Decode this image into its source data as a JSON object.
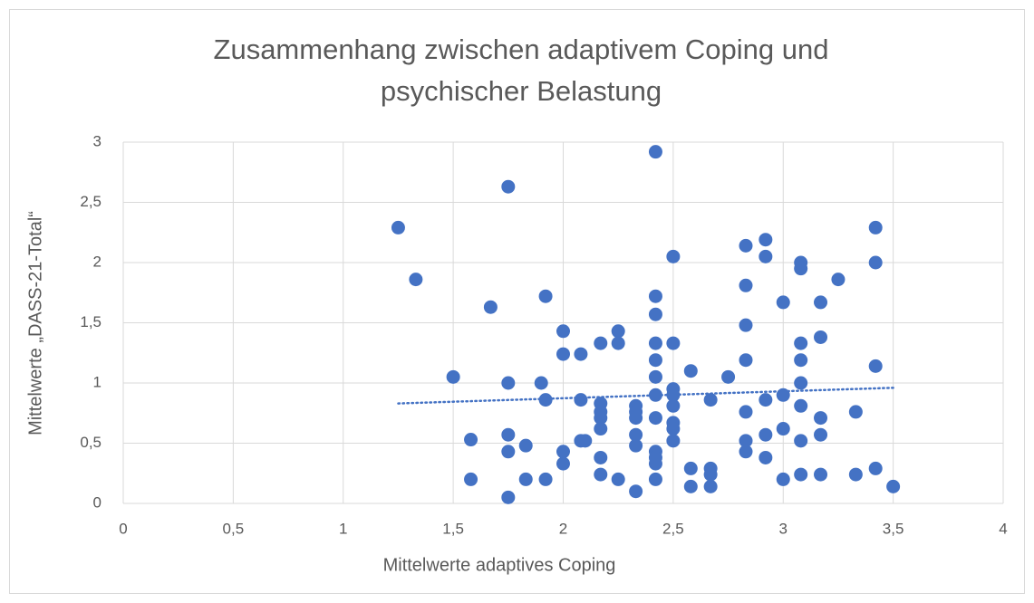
{
  "chart_data": {
    "type": "scatter",
    "title": [
      "Zusammenhang zwischen adaptivem Coping und",
      "psychischer Belastung"
    ],
    "x_label": "Mittelwerte adaptives Coping",
    "y_label": "Mittelwerte „DASS-21-Total“",
    "color": "#4472c4",
    "grid": true,
    "xlim": [
      0,
      4
    ],
    "ylim": [
      0,
      3
    ],
    "xticks": [
      0,
      {
        "value": 0.5,
        "label": "0,5"
      },
      1,
      {
        "value": 1.5,
        "label": "1,5"
      },
      2,
      {
        "value": 2.5,
        "label": "2,5"
      },
      3,
      {
        "value": 3.5,
        "label": "3,5"
      },
      4
    ],
    "yticks": [
      0,
      {
        "value": 0.5,
        "label": "0,5"
      },
      1,
      {
        "value": 1.5,
        "label": "1,5"
      },
      2,
      {
        "value": 2.5,
        "label": "2,5"
      },
      3
    ],
    "x": [
      1.25,
      1.33,
      1.75,
      2.42,
      1.5,
      1.67,
      1.58,
      1.58,
      1.75,
      1.75,
      1.75,
      1.75,
      1.83,
      1.83,
      1.92,
      1.9,
      1.92,
      1.92,
      2.0,
      2.0,
      2.0,
      2.0,
      2.08,
      2.08,
      2.08,
      2.1,
      2.17,
      2.17,
      2.17,
      2.17,
      2.17,
      2.17,
      2.17,
      2.25,
      2.25,
      2.25,
      2.33,
      2.33,
      2.33,
      2.33,
      2.33,
      2.33,
      2.42,
      2.42,
      2.42,
      2.42,
      2.42,
      2.42,
      2.42,
      2.42,
      2.42,
      2.42,
      2.42,
      2.5,
      2.5,
      2.5,
      2.5,
      2.5,
      2.5,
      2.5,
      2.5,
      2.58,
      2.58,
      2.58,
      2.67,
      2.67,
      2.67,
      2.67,
      2.75,
      2.83,
      2.83,
      2.83,
      2.83,
      2.83,
      2.83,
      2.83,
      2.92,
      2.92,
      2.92,
      2.92,
      2.92,
      3.0,
      3.0,
      3.0,
      3.0,
      3.08,
      3.08,
      3.08,
      3.08,
      3.08,
      3.08,
      3.08,
      3.08,
      3.17,
      3.17,
      3.17,
      3.17,
      3.17,
      3.25,
      3.33,
      3.33,
      3.42,
      3.42,
      3.42,
      3.42,
      3.5
    ],
    "values": [
      2.29,
      1.86,
      2.63,
      2.92,
      1.05,
      1.63,
      0.53,
      0.2,
      1.0,
      0.57,
      0.43,
      0.05,
      0.48,
      0.2,
      1.72,
      1.0,
      0.86,
      0.2,
      1.43,
      1.24,
      0.43,
      0.33,
      1.24,
      0.86,
      0.52,
      0.52,
      1.33,
      0.83,
      0.76,
      0.71,
      0.62,
      0.38,
      0.24,
      1.43,
      1.33,
      0.2,
      0.81,
      0.76,
      0.71,
      0.57,
      0.48,
      0.1,
      1.72,
      1.57,
      1.33,
      1.19,
      1.05,
      0.9,
      0.71,
      0.43,
      0.38,
      0.33,
      0.2,
      2.05,
      1.33,
      0.95,
      0.9,
      0.81,
      0.67,
      0.62,
      0.52,
      1.1,
      0.29,
      0.14,
      0.86,
      0.29,
      0.24,
      0.14,
      1.05,
      2.14,
      1.81,
      1.48,
      1.19,
      0.76,
      0.52,
      0.43,
      2.19,
      2.05,
      0.86,
      0.57,
      0.38,
      1.67,
      0.9,
      0.62,
      0.2,
      2.0,
      1.95,
      1.33,
      1.19,
      1.0,
      0.81,
      0.52,
      0.24,
      1.67,
      1.38,
      0.71,
      0.57,
      0.24,
      1.86,
      0.76,
      0.24,
      2.29,
      2.0,
      1.14,
      0.29,
      0.14
    ],
    "trendline": {
      "x": [
        1.25,
        3.5
      ],
      "values": [
        0.83,
        0.96
      ]
    }
  }
}
